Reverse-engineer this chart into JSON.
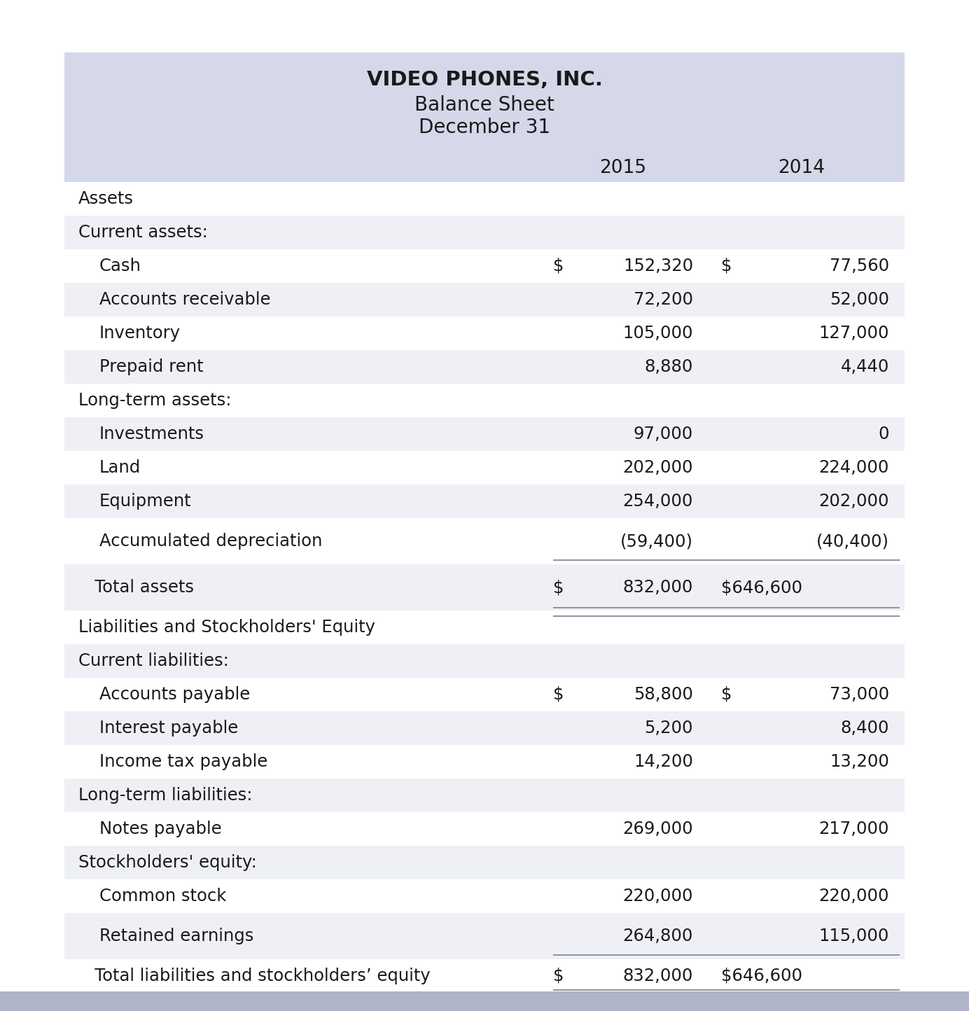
{
  "title_line1": "VIDEO PHONES, INC.",
  "title_line2": "Balance Sheet",
  "title_line3": "December 31",
  "col_year1": "2015",
  "col_year2": "2014",
  "bg_color": "#ffffff",
  "header_bg": "#d4d8e8",
  "row_alt_bg": "#eef0f5",
  "row_white_bg": "#ffffff",
  "text_color": "#1a1a1a",
  "border_color": "#888899",
  "bottom_border_color": "#8888aa",
  "rows": [
    {
      "label": "Assets",
      "indent": 0,
      "val2015": "",
      "val2014": "",
      "dollar2015": false,
      "dollar2014": false,
      "bold": false,
      "bg": "white",
      "underline": false,
      "double_underline": false,
      "extra_top": false
    },
    {
      "label": "Current assets:",
      "indent": 0,
      "val2015": "",
      "val2014": "",
      "dollar2015": false,
      "dollar2014": false,
      "bold": false,
      "bg": "alt",
      "underline": false,
      "double_underline": false,
      "extra_top": false
    },
    {
      "label": "Cash",
      "indent": 1,
      "val2015": "152,320",
      "val2014": "77,560",
      "dollar2015": true,
      "dollar2014": true,
      "bold": false,
      "bg": "white",
      "underline": false,
      "double_underline": false,
      "extra_top": false
    },
    {
      "label": "Accounts receivable",
      "indent": 1,
      "val2015": "72,200",
      "val2014": "52,000",
      "dollar2015": false,
      "dollar2014": false,
      "bold": false,
      "bg": "alt",
      "underline": false,
      "double_underline": false,
      "extra_top": false
    },
    {
      "label": "Inventory",
      "indent": 1,
      "val2015": "105,000",
      "val2014": "127,000",
      "dollar2015": false,
      "dollar2014": false,
      "bold": false,
      "bg": "white",
      "underline": false,
      "double_underline": false,
      "extra_top": false
    },
    {
      "label": "Prepaid rent",
      "indent": 1,
      "val2015": "8,880",
      "val2014": "4,440",
      "dollar2015": false,
      "dollar2014": false,
      "bold": false,
      "bg": "alt",
      "underline": false,
      "double_underline": false,
      "extra_top": false
    },
    {
      "label": "Long-term assets:",
      "indent": 0,
      "val2015": "",
      "val2014": "",
      "dollar2015": false,
      "dollar2014": false,
      "bold": false,
      "bg": "white",
      "underline": false,
      "double_underline": false,
      "extra_top": false
    },
    {
      "label": "Investments",
      "indent": 1,
      "val2015": "97,000",
      "val2014": "0",
      "dollar2015": false,
      "dollar2014": false,
      "bold": false,
      "bg": "alt",
      "underline": false,
      "double_underline": false,
      "extra_top": false
    },
    {
      "label": "Land",
      "indent": 1,
      "val2015": "202,000",
      "val2014": "224,000",
      "dollar2015": false,
      "dollar2014": false,
      "bold": false,
      "bg": "white",
      "underline": false,
      "double_underline": false,
      "extra_top": false
    },
    {
      "label": "Equipment",
      "indent": 1,
      "val2015": "254,000",
      "val2014": "202,000",
      "dollar2015": false,
      "dollar2014": false,
      "bold": false,
      "bg": "alt",
      "underline": false,
      "double_underline": false,
      "extra_top": false
    },
    {
      "label": "Accumulated depreciation",
      "indent": 1,
      "val2015": "(59,400)",
      "val2014": "(40,400)",
      "dollar2015": false,
      "dollar2014": false,
      "bold": false,
      "bg": "white",
      "underline": true,
      "double_underline": false,
      "extra_top": false
    },
    {
      "label": "   Total assets",
      "indent": 0,
      "val2015": "832,000",
      "val2014": "$646,600",
      "dollar2015": true,
      "dollar2014": false,
      "bold": false,
      "bg": "alt",
      "underline": false,
      "double_underline": true,
      "extra_top": true
    },
    {
      "label": "Liabilities and Stockholders' Equity",
      "indent": 0,
      "val2015": "",
      "val2014": "",
      "dollar2015": false,
      "dollar2014": false,
      "bold": false,
      "bg": "white",
      "underline": false,
      "double_underline": false,
      "extra_top": true
    },
    {
      "label": "Current liabilities:",
      "indent": 0,
      "val2015": "",
      "val2014": "",
      "dollar2015": false,
      "dollar2014": false,
      "bold": false,
      "bg": "alt",
      "underline": false,
      "double_underline": false,
      "extra_top": false
    },
    {
      "label": "Accounts payable",
      "indent": 1,
      "val2015": "58,800",
      "val2014": "73,000",
      "dollar2015": true,
      "dollar2014": true,
      "bold": false,
      "bg": "white",
      "underline": false,
      "double_underline": false,
      "extra_top": false
    },
    {
      "label": "Interest payable",
      "indent": 1,
      "val2015": "5,200",
      "val2014": "8,400",
      "dollar2015": false,
      "dollar2014": false,
      "bold": false,
      "bg": "alt",
      "underline": false,
      "double_underline": false,
      "extra_top": false
    },
    {
      "label": "Income tax payable",
      "indent": 1,
      "val2015": "14,200",
      "val2014": "13,200",
      "dollar2015": false,
      "dollar2014": false,
      "bold": false,
      "bg": "white",
      "underline": false,
      "double_underline": false,
      "extra_top": false
    },
    {
      "label": "Long-term liabilities:",
      "indent": 0,
      "val2015": "",
      "val2014": "",
      "dollar2015": false,
      "dollar2014": false,
      "bold": false,
      "bg": "alt",
      "underline": false,
      "double_underline": false,
      "extra_top": false
    },
    {
      "label": "Notes payable",
      "indent": 1,
      "val2015": "269,000",
      "val2014": "217,000",
      "dollar2015": false,
      "dollar2014": false,
      "bold": false,
      "bg": "white",
      "underline": false,
      "double_underline": false,
      "extra_top": false
    },
    {
      "label": "Stockholders' equity:",
      "indent": 0,
      "val2015": "",
      "val2014": "",
      "dollar2015": false,
      "dollar2014": false,
      "bold": false,
      "bg": "alt",
      "underline": false,
      "double_underline": false,
      "extra_top": false
    },
    {
      "label": "Common stock",
      "indent": 1,
      "val2015": "220,000",
      "val2014": "220,000",
      "dollar2015": false,
      "dollar2014": false,
      "bold": false,
      "bg": "white",
      "underline": false,
      "double_underline": false,
      "extra_top": false
    },
    {
      "label": "Retained earnings",
      "indent": 1,
      "val2015": "264,800",
      "val2014": "115,000",
      "dollar2015": false,
      "dollar2014": false,
      "bold": false,
      "bg": "alt",
      "underline": true,
      "double_underline": false,
      "extra_top": false
    },
    {
      "label": "   Total liabilities and stockholders’ equity",
      "indent": 0,
      "val2015": "832,000",
      "val2014": "$646,600",
      "dollar2015": true,
      "dollar2014": false,
      "bold": false,
      "bg": "white",
      "underline": false,
      "double_underline": true,
      "extra_top": true
    }
  ],
  "figsize": [
    13.84,
    14.44
  ],
  "dpi": 100
}
